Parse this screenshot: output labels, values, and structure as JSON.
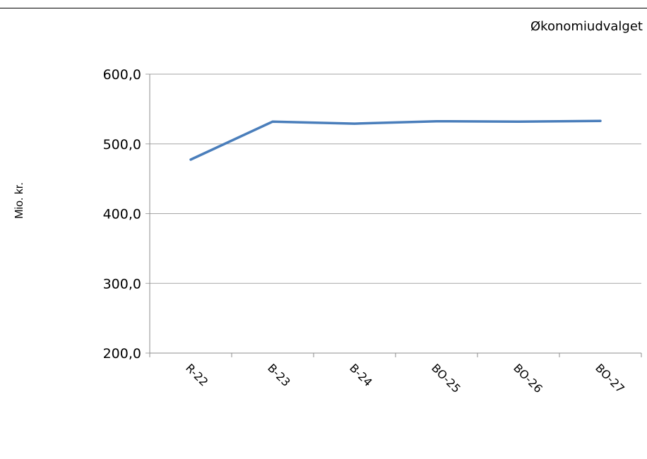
{
  "header": {
    "label": "Økonomiudvalget"
  },
  "chart_data": {
    "type": "line",
    "title": "",
    "xlabel": "",
    "ylabel": "Mio. kr.",
    "categories": [
      "R-22",
      "B-23",
      "B-24",
      "BO-25",
      "BO-26",
      "BO-27"
    ],
    "series": [
      {
        "values": [
          477.5,
          532.0,
          529.0,
          532.5,
          532.0,
          533.0
        ],
        "color": "#4a7ebb"
      }
    ],
    "ylim": [
      200,
      600
    ],
    "yticks": [
      200,
      300,
      400,
      500,
      600
    ],
    "ytick_labels": [
      "200,0",
      "300,0",
      "400,0",
      "500,0",
      "600,0"
    ],
    "grid": true,
    "legend": "none"
  }
}
